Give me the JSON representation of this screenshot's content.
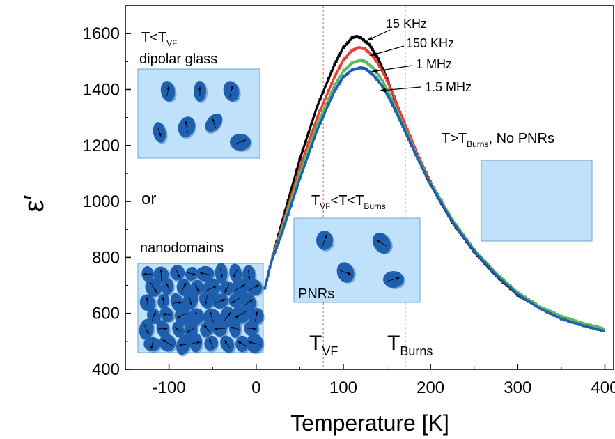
{
  "chart_data": {
    "type": "line",
    "xlabel": "Temperature [K]",
    "ylabel": "ε′",
    "xlim": [
      -150,
      410
    ],
    "ylim": [
      400,
      1700
    ],
    "xticks": [
      -100,
      0,
      100,
      200,
      300,
      400
    ],
    "yticks": [
      400,
      600,
      800,
      1000,
      1200,
      1400,
      1600
    ],
    "x_tick_labels": [
      "-100",
      "0",
      "100",
      "200",
      "300",
      "400"
    ],
    "y_tick_labels": [
      "400",
      "600",
      "800",
      "1000",
      "1200",
      "1400",
      "1600"
    ],
    "grid": false,
    "series": [
      {
        "name": "15 KHz",
        "color": "#000000",
        "x": [
          17,
          30,
          50,
          70,
          90,
          100,
          110,
          115,
          120,
          130,
          140,
          150,
          160,
          170,
          180,
          200,
          225,
          250,
          275,
          300,
          325,
          350,
          375,
          400
        ],
        "y": [
          780,
          930,
          1150,
          1340,
          1490,
          1550,
          1585,
          1590,
          1585,
          1560,
          1510,
          1440,
          1355,
          1275,
          1195,
          1060,
          925,
          820,
          735,
          665,
          620,
          585,
          560,
          538
        ]
      },
      {
        "name": "150 KHz",
        "color": "#ee3b30",
        "x": [
          17,
          30,
          50,
          70,
          90,
          100,
          110,
          118,
          125,
          135,
          145,
          155,
          165,
          175,
          185,
          200,
          225,
          250,
          275,
          300,
          325,
          350,
          375,
          400
        ],
        "y": [
          780,
          915,
          1120,
          1300,
          1445,
          1505,
          1540,
          1550,
          1545,
          1515,
          1465,
          1400,
          1320,
          1245,
          1170,
          1070,
          935,
          825,
          740,
          670,
          620,
          585,
          560,
          540
        ]
      },
      {
        "name": "1 MHz",
        "color": "#5cb85c",
        "x": [
          17,
          30,
          50,
          70,
          90,
          100,
          110,
          120,
          125,
          135,
          145,
          155,
          165,
          175,
          185,
          200,
          225,
          250,
          275,
          300,
          325,
          350,
          375,
          400
        ],
        "y": [
          780,
          905,
          1100,
          1275,
          1415,
          1465,
          1495,
          1505,
          1500,
          1475,
          1430,
          1370,
          1300,
          1230,
          1160,
          1065,
          935,
          828,
          745,
          675,
          625,
          590,
          565,
          545
        ]
      },
      {
        "name": "1.5 MHz",
        "color": "#1d5fb5",
        "x": [
          10,
          17,
          30,
          50,
          70,
          90,
          100,
          110,
          120,
          125,
          135,
          145,
          155,
          165,
          175,
          185,
          200,
          225,
          250,
          275,
          300,
          325,
          350,
          375,
          400
        ],
        "y": [
          690,
          780,
          890,
          1080,
          1255,
          1395,
          1445,
          1470,
          1478,
          1475,
          1450,
          1410,
          1355,
          1290,
          1222,
          1155,
          1060,
          928,
          822,
          738,
          668,
          618,
          580,
          556,
          536
        ]
      }
    ],
    "vertical_lines": [
      {
        "x": 77,
        "label_main": "T",
        "label_sub": "VF",
        "style": "dashed",
        "color": "#d9534f"
      },
      {
        "x": 171,
        "label_main": "T",
        "label_sub": "Burns",
        "style": "dashed",
        "color": "#d9534f"
      }
    ],
    "legend_labels": [
      {
        "text": "15 KHz"
      },
      {
        "text": "150 KHz"
      },
      {
        "text": "1 MHz"
      },
      {
        "text": "1.5 MHz"
      }
    ],
    "annotations": {
      "low_t_label_main": "T<T",
      "low_t_label_sub": "VF",
      "dipolar_glass": "dipolar glass",
      "or": "or",
      "nanodomains": "nanodomains",
      "mid_label_t1": "T",
      "mid_label_sub1": "VF",
      "mid_label_mid": "<T<T",
      "mid_label_sub2": "Burns",
      "pnrs": "PNRs",
      "high_label_main": "T>T",
      "high_label_sub": "Burns",
      "high_label_tail": ", No PNRs"
    },
    "colors": {
      "box_fill": "#bfe1fb",
      "box_stroke": "#6aa6d6",
      "domain_fill": "#1f5fb0"
    }
  }
}
